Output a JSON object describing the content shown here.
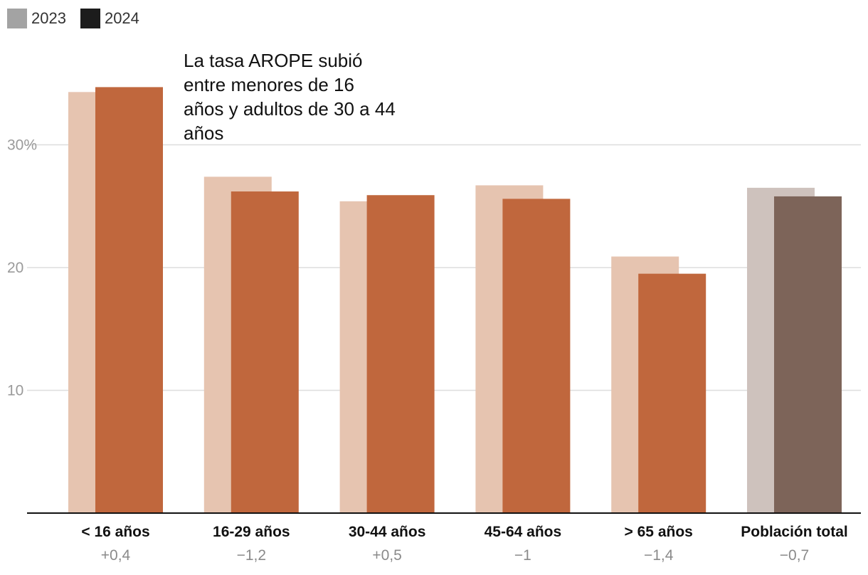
{
  "legend": {
    "items": [
      {
        "label": "2023",
        "color": "#a3a3a3"
      },
      {
        "label": "2024",
        "color": "#1c1c1c"
      }
    ]
  },
  "annotation": "La tasa AROPE subió entre menores de 16 años y adultos de 30 a 44 años",
  "colors": {
    "bar_2023": "#e6c4b0",
    "bar_2024": "#c0673d",
    "total_2023": "#cec2bd",
    "total_2024": "#7d6459",
    "grid": "#dddddd",
    "axis": "#111111"
  },
  "chart_data": {
    "type": "bar",
    "title": "",
    "xlabel": "",
    "ylabel": "",
    "ylim": [
      0,
      36
    ],
    "yticks": [
      {
        "value": 10,
        "label": "10"
      },
      {
        "value": 20,
        "label": "20"
      },
      {
        "value": 30,
        "label": "30%"
      }
    ],
    "categories": [
      "< 16 años",
      "16-29 años",
      "30-44 años",
      "45-64 años",
      "> 65 años",
      "Población total"
    ],
    "deltas": [
      "+0,4",
      "−1,2",
      "+0,5",
      "−1",
      "−1,4",
      "−0,7"
    ],
    "series": [
      {
        "name": "2023",
        "values": [
          34.3,
          27.4,
          25.4,
          26.7,
          20.9,
          26.5
        ]
      },
      {
        "name": "2024",
        "values": [
          34.7,
          26.2,
          25.9,
          25.6,
          19.5,
          25.8
        ]
      }
    ]
  }
}
